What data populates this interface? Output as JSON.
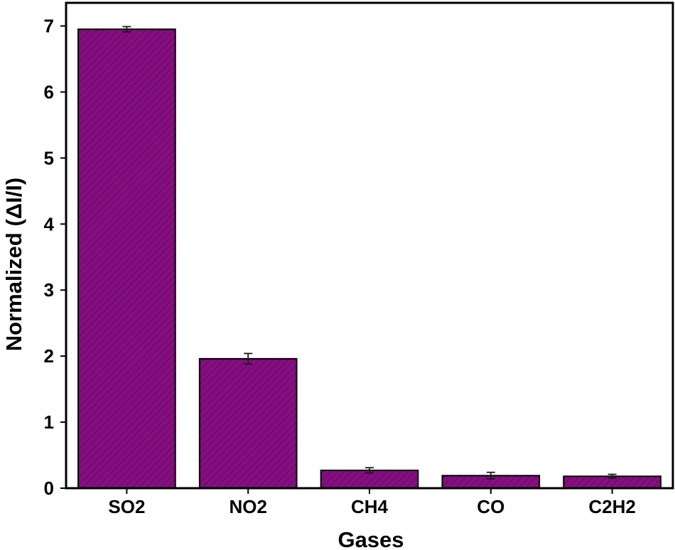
{
  "chart_data": {
    "type": "bar",
    "categories": [
      "SO2",
      "NO2",
      "CH4",
      "CO",
      "C2H2"
    ],
    "values": [
      6.95,
      1.96,
      0.27,
      0.19,
      0.18
    ],
    "errors": [
      0.04,
      0.08,
      0.04,
      0.05,
      0.03
    ],
    "title": "",
    "xlabel": "Gases",
    "ylabel": "Normalized (ΔI/I)",
    "ylim": [
      0,
      7.35
    ],
    "yticks": [
      0,
      1,
      2,
      3,
      4,
      5,
      6,
      7
    ],
    "bar_color": "#8b0a86",
    "hatch_color": "#2a2a2a",
    "error_bar_color": "#1a1a1a",
    "grid": false,
    "legend": "none"
  }
}
